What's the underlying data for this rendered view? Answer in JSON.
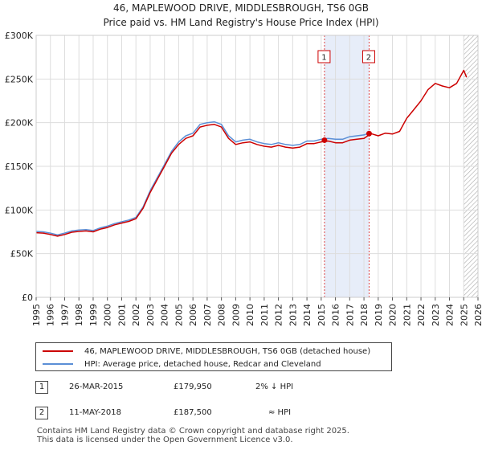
{
  "chart_data": {
    "type": "line",
    "title": "46, MAPLEWOOD DRIVE, MIDDLESBROUGH, TS6 0GB",
    "subtitle": "Price paid vs. HM Land Registry's House Price Index (HPI)",
    "xlim": [
      1995,
      2026
    ],
    "ylim": [
      0,
      300000
    ],
    "x_ticks": [
      "1995",
      "1996",
      "1997",
      "1998",
      "1999",
      "2000",
      "2001",
      "2002",
      "2003",
      "2004",
      "2005",
      "2006",
      "2007",
      "2008",
      "2009",
      "2010",
      "2011",
      "2012",
      "2013",
      "2014",
      "2015",
      "2016",
      "2017",
      "2018",
      "2019",
      "2020",
      "2021",
      "2022",
      "2023",
      "2024",
      "2025",
      "2026"
    ],
    "y_ticks": [
      {
        "value": 0,
        "label": "£0"
      },
      {
        "value": 50000,
        "label": "£50K"
      },
      {
        "value": 100000,
        "label": "£100K"
      },
      {
        "value": 150000,
        "label": "£150K"
      },
      {
        "value": 200000,
        "label": "£200K"
      },
      {
        "value": 250000,
        "label": "£250K"
      },
      {
        "value": 300000,
        "label": "£300K"
      }
    ],
    "grid": true,
    "shaded_band": [
      2015.23,
      2018.36
    ],
    "hatched_from": 2025.0,
    "series": [
      {
        "name": "46, MAPLEWOOD DRIVE, MIDDLESBROUGH, TS6 0GB (detached house)",
        "color": "#cc0000",
        "x": [
          1995.0,
          1995.5,
          1996.0,
          1996.5,
          1997.0,
          1997.5,
          1998.0,
          1998.5,
          1999.0,
          1999.5,
          2000.0,
          2000.5,
          2001.0,
          2001.5,
          2002.0,
          2002.5,
          2003.0,
          2003.5,
          2004.0,
          2004.5,
          2005.0,
          2005.5,
          2006.0,
          2006.5,
          2007.0,
          2007.5,
          2008.0,
          2008.5,
          2009.0,
          2009.5,
          2010.0,
          2010.5,
          2011.0,
          2011.5,
          2012.0,
          2012.5,
          2013.0,
          2013.5,
          2014.0,
          2014.5,
          2015.0,
          2015.5,
          2016.0,
          2016.5,
          2017.0,
          2017.5,
          2018.0,
          2018.5,
          2019.0,
          2019.5,
          2020.0,
          2020.5,
          2021.0,
          2021.5,
          2022.0,
          2022.5,
          2023.0,
          2023.5,
          2024.0,
          2024.5,
          2025.0,
          2025.2
        ],
        "y": [
          74000,
          73500,
          72000,
          70000,
          72000,
          74500,
          75500,
          76000,
          75000,
          78000,
          80000,
          83000,
          85000,
          87000,
          90000,
          102000,
          120000,
          135000,
          150000,
          165000,
          175000,
          182000,
          185000,
          195000,
          197000,
          198000,
          195000,
          182000,
          175000,
          177000,
          178000,
          175000,
          173000,
          172000,
          174000,
          172000,
          171000,
          172000,
          176000,
          176000,
          178000,
          179000,
          177000,
          177000,
          180000,
          181000,
          182000,
          187500,
          185000,
          188000,
          187000,
          190000,
          205000,
          215000,
          225000,
          238000,
          245000,
          242000,
          240000,
          245000,
          260000,
          252000
        ]
      },
      {
        "name": "HPI: Average price, detached house, Redcar and Cleveland",
        "color": "#5b8fd6",
        "x": [
          1995.0,
          1995.5,
          1996.0,
          1996.5,
          1997.0,
          1997.5,
          1998.0,
          1998.5,
          1999.0,
          1999.5,
          2000.0,
          2000.5,
          2001.0,
          2001.5,
          2002.0,
          2002.5,
          2003.0,
          2003.5,
          2004.0,
          2004.5,
          2005.0,
          2005.5,
          2006.0,
          2006.5,
          2007.0,
          2007.5,
          2008.0,
          2008.5,
          2009.0,
          2009.5,
          2010.0,
          2010.5,
          2011.0,
          2011.5,
          2012.0,
          2012.5,
          2013.0,
          2013.5,
          2014.0,
          2014.5,
          2015.0,
          2015.5,
          2016.0,
          2016.5,
          2017.0,
          2017.5,
          2018.0,
          2018.5
        ],
        "y": [
          75500,
          75000,
          73500,
          71500,
          73500,
          76000,
          77000,
          77500,
          76500,
          79500,
          81500,
          84500,
          86500,
          88500,
          91500,
          103500,
          122000,
          137000,
          152000,
          167000,
          178000,
          185000,
          188000,
          198000,
          200000,
          201000,
          198000,
          185000,
          178000,
          180000,
          181000,
          178000,
          176000,
          175000,
          177000,
          175000,
          174000,
          175000,
          179000,
          179000,
          181000,
          182000,
          181000,
          181000,
          184000,
          185000,
          186000,
          189000
        ]
      }
    ],
    "sale_markers": [
      {
        "id": "1",
        "x": 2015.23,
        "y": 179950
      },
      {
        "id": "2",
        "x": 2018.36,
        "y": 187500
      }
    ]
  },
  "legend": {
    "property_label": "46, MAPLEWOOD DRIVE, MIDDLESBROUGH, TS6 0GB (detached house)",
    "hpi_label": "HPI: Average price, detached house, Redcar and Cleveland",
    "property_color": "#cc0000",
    "hpi_color": "#5b8fd6"
  },
  "transactions": [
    {
      "id": "1",
      "date": "26-MAR-2015",
      "price": "£179,950",
      "relation": "2% ↓ HPI"
    },
    {
      "id": "2",
      "date": "11-MAY-2018",
      "price": "£187,500",
      "relation": "≈ HPI"
    }
  ],
  "footer": {
    "line1": "Contains HM Land Registry data © Crown copyright and database right 2025.",
    "line2": "This data is licensed under the Open Government Licence v3.0."
  }
}
